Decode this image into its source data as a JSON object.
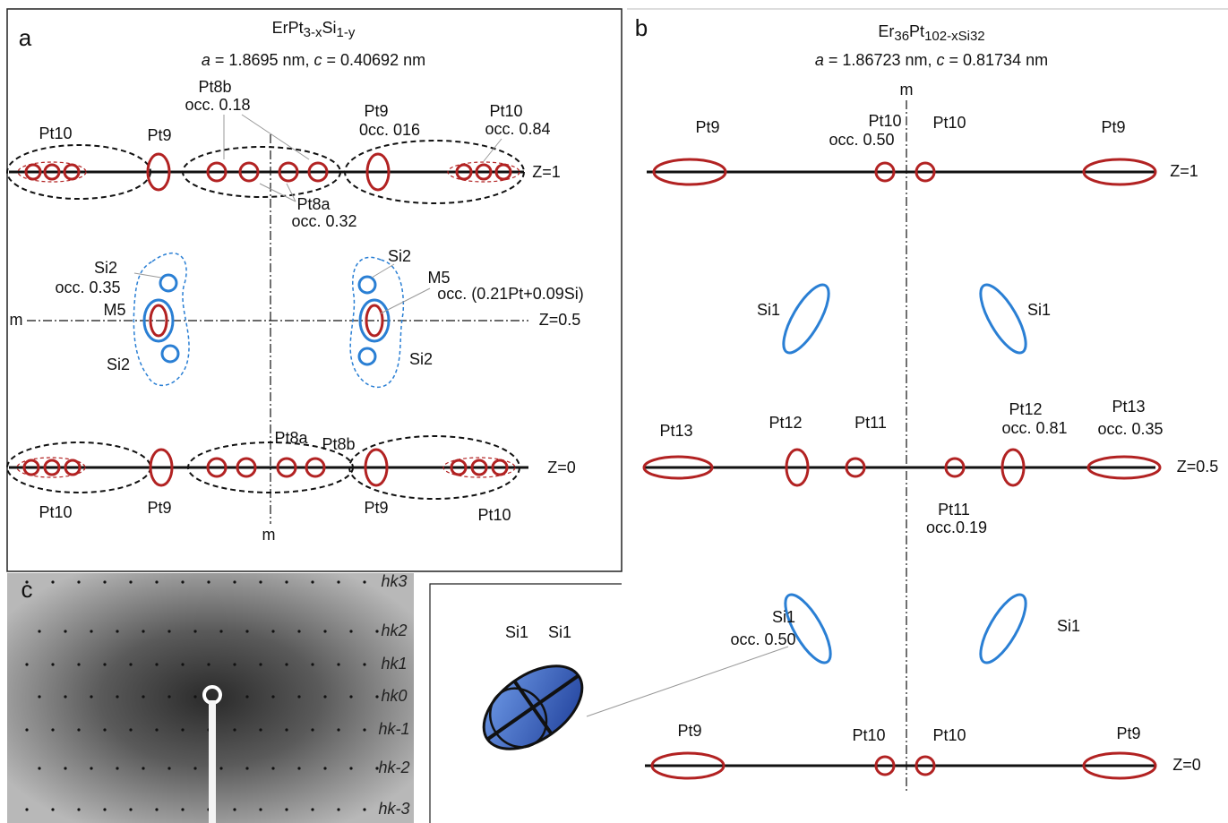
{
  "panels": {
    "a": {
      "letter": "a",
      "formula": [
        {
          "text": "ErPt"
        },
        {
          "text": "3-x",
          "sub": true
        },
        {
          "text": "Si"
        },
        {
          "text": "1-y",
          "sub": true
        }
      ],
      "lattice": [
        {
          "text": "a",
          "italic": true
        },
        {
          "text": " = 1.8695 nm, "
        },
        {
          "text": "c",
          "italic": true
        },
        {
          "text": " = 0.40692 nm"
        }
      ],
      "labels": [
        "Pt10",
        "Pt9",
        "Pt8b",
        "occ. 0.18",
        "Pt9",
        "0cc. 016",
        "Pt10",
        "occ. 0.84",
        "Pt8a",
        "occ. 0.32",
        "Si2",
        "occ. 0.35",
        "M5",
        "Si2",
        "Si2",
        "M5",
        "occ. (0.21Pt+0.09Si)",
        "Si2",
        "m",
        "Z=1",
        "Z=0.5",
        "Pt8a",
        "Pt8b",
        "Z=0",
        "Pt10",
        "Pt9",
        "Pt9",
        "Pt10",
        "m"
      ]
    },
    "b": {
      "letter": "b",
      "formula": [
        {
          "text": "Er"
        },
        {
          "text": "36",
          "sub": true
        },
        {
          "text": "Pt"
        },
        {
          "text": "102-x",
          "sub": true
        },
        {
          "text": "Si",
          "sub": true
        },
        {
          "text": "32",
          "sub": true
        }
      ],
      "lattice": [
        {
          "text": "a",
          "italic": true
        },
        {
          "text": " = 1.86723 nm, "
        },
        {
          "text": "c",
          "italic": true
        },
        {
          "text": " = 0.81734 nm"
        }
      ],
      "labels": [
        "m",
        "Pt9",
        "Pt10",
        "occ. 0.50",
        "Pt10",
        "Pt9",
        "Z=1",
        "Si1",
        "Si1",
        "Pt13",
        "Pt12",
        "Pt11",
        "Pt12",
        "occ. 0.81",
        "Pt13",
        "occ. 0.35",
        "Z=0.5",
        "Pt11",
        "occ.0.19",
        "Si1",
        "occ. 0.50",
        "Si1",
        "Si1",
        "Si1",
        "Pt9",
        "Pt10",
        "Pt10",
        "Pt9",
        "Z=0"
      ]
    },
    "c": {
      "letter": "c",
      "layers": [
        "hk3",
        "hk2",
        "hk1",
        "hk0",
        "hk-1",
        "hk-2",
        "hk-3"
      ]
    }
  }
}
